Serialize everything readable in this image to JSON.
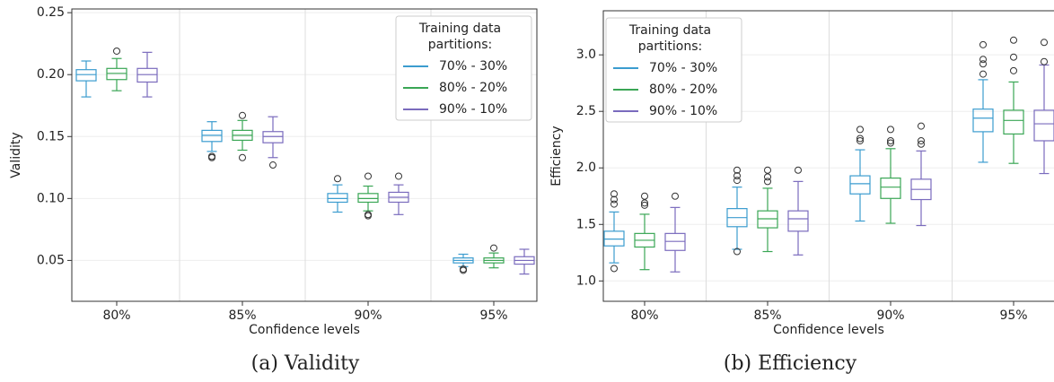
{
  "chart_data": [
    {
      "type": "box",
      "caption": "(a) Validity",
      "xlabel": "Confidence levels",
      "ylabel": "Validity",
      "categories": [
        "80%",
        "85%",
        "90%",
        "95%"
      ],
      "ylim": [
        0.017,
        0.253
      ],
      "yticks": [
        {
          "value": 0.05,
          "label": "0.05"
        },
        {
          "value": 0.1,
          "label": "0.10"
        },
        {
          "value": 0.15,
          "label": "0.15"
        },
        {
          "value": 0.2,
          "label": "0.20"
        },
        {
          "value": 0.25,
          "label": "0.25"
        }
      ],
      "grid": true,
      "legend_loc": "upper right",
      "legend_title": [
        "Training data",
        "partitions:"
      ],
      "series": [
        {
          "name": "70% - 30%",
          "color": "#3b9ccf",
          "boxes": [
            {
              "whislo": 0.182,
              "q1": 0.195,
              "med": 0.2,
              "q3": 0.204,
              "whishi": 0.211,
              "fliers": []
            },
            {
              "whislo": 0.138,
              "q1": 0.146,
              "med": 0.151,
              "q3": 0.155,
              "whishi": 0.162,
              "fliers": [
                0.133,
                0.134
              ]
            },
            {
              "whislo": 0.089,
              "q1": 0.097,
              "med": 0.1,
              "q3": 0.104,
              "whishi": 0.111,
              "fliers": [
                0.116
              ]
            },
            {
              "whislo": 0.045,
              "q1": 0.048,
              "med": 0.05,
              "q3": 0.052,
              "whishi": 0.055,
              "fliers": [
                0.042,
                0.043
              ]
            }
          ]
        },
        {
          "name": "80% - 20%",
          "color": "#3aa655",
          "boxes": [
            {
              "whislo": 0.187,
              "q1": 0.196,
              "med": 0.201,
              "q3": 0.205,
              "whishi": 0.213,
              "fliers": [
                0.219
              ]
            },
            {
              "whislo": 0.139,
              "q1": 0.147,
              "med": 0.151,
              "q3": 0.155,
              "whishi": 0.163,
              "fliers": [
                0.133,
                0.167
              ]
            },
            {
              "whislo": 0.09,
              "q1": 0.097,
              "med": 0.1,
              "q3": 0.104,
              "whishi": 0.11,
              "fliers": [
                0.086,
                0.087,
                0.118
              ]
            },
            {
              "whislo": 0.044,
              "q1": 0.048,
              "med": 0.05,
              "q3": 0.052,
              "whishi": 0.056,
              "fliers": [
                0.06
              ]
            }
          ]
        },
        {
          "name": "90% - 10%",
          "color": "#7a6bbd",
          "boxes": [
            {
              "whislo": 0.182,
              "q1": 0.194,
              "med": 0.2,
              "q3": 0.205,
              "whishi": 0.218,
              "fliers": []
            },
            {
              "whislo": 0.133,
              "q1": 0.145,
              "med": 0.15,
              "q3": 0.154,
              "whishi": 0.166,
              "fliers": [
                0.127
              ]
            },
            {
              "whislo": 0.087,
              "q1": 0.097,
              "med": 0.101,
              "q3": 0.105,
              "whishi": 0.111,
              "fliers": [
                0.118
              ]
            },
            {
              "whislo": 0.039,
              "q1": 0.047,
              "med": 0.05,
              "q3": 0.053,
              "whishi": 0.059,
              "fliers": []
            }
          ]
        }
      ]
    },
    {
      "type": "box",
      "caption": "(b) Efficiency",
      "xlabel": "Confidence levels",
      "ylabel": "Efficiency",
      "categories": [
        "80%",
        "85%",
        "90%",
        "95%"
      ],
      "ylim": [
        0.82,
        3.39
      ],
      "yticks": [
        {
          "value": 1,
          "label": "1.0"
        },
        1.5,
        {
          "value": 2,
          "label": "2.0"
        },
        2.5,
        {
          "value": 3,
          "label": "3.0"
        }
      ],
      "grid": true,
      "legend_loc": "upper left",
      "legend_title": [
        "Training data",
        "partitions:"
      ],
      "series": [
        {
          "name": "70% - 30%",
          "color": "#3b9ccf",
          "boxes": [
            {
              "whislo": 1.16,
              "q1": 1.31,
              "med": 1.37,
              "q3": 1.44,
              "whishi": 1.61,
              "fliers": [
                1.11,
                1.68,
                1.72,
                1.77
              ]
            },
            {
              "whislo": 1.28,
              "q1": 1.48,
              "med": 1.56,
              "q3": 1.64,
              "whishi": 1.83,
              "fliers": [
                1.26,
                1.89,
                1.93,
                1.98
              ]
            },
            {
              "whislo": 1.53,
              "q1": 1.77,
              "med": 1.86,
              "q3": 1.93,
              "whishi": 2.16,
              "fliers": [
                2.24,
                2.26,
                2.34
              ]
            },
            {
              "whislo": 2.05,
              "q1": 2.32,
              "med": 2.44,
              "q3": 2.52,
              "whishi": 2.78,
              "fliers": [
                2.83,
                2.92,
                2.96,
                3.09
              ]
            }
          ]
        },
        {
          "name": "80% - 20%",
          "color": "#3aa655",
          "boxes": [
            {
              "whislo": 1.1,
              "q1": 1.3,
              "med": 1.36,
              "q3": 1.42,
              "whishi": 1.59,
              "fliers": [
                1.67,
                1.69,
                1.75
              ]
            },
            {
              "whislo": 1.26,
              "q1": 1.47,
              "med": 1.55,
              "q3": 1.62,
              "whishi": 1.82,
              "fliers": [
                1.88,
                1.92,
                1.98
              ]
            },
            {
              "whislo": 1.51,
              "q1": 1.73,
              "med": 1.83,
              "q3": 1.91,
              "whishi": 2.17,
              "fliers": [
                2.22,
                2.24,
                2.34
              ]
            },
            {
              "whislo": 2.04,
              "q1": 2.3,
              "med": 2.42,
              "q3": 2.51,
              "whishi": 2.76,
              "fliers": [
                2.86,
                2.98,
                3.13
              ]
            }
          ]
        },
        {
          "name": "90% - 10%",
          "color": "#7a6bbd",
          "boxes": [
            {
              "whislo": 1.08,
              "q1": 1.27,
              "med": 1.35,
              "q3": 1.42,
              "whishi": 1.65,
              "fliers": [
                1.75
              ]
            },
            {
              "whislo": 1.23,
              "q1": 1.44,
              "med": 1.55,
              "q3": 1.62,
              "whishi": 1.88,
              "fliers": [
                1.98
              ]
            },
            {
              "whislo": 1.49,
              "q1": 1.72,
              "med": 1.81,
              "q3": 1.9,
              "whishi": 2.15,
              "fliers": [
                2.21,
                2.24,
                2.37
              ]
            },
            {
              "whislo": 1.95,
              "q1": 2.24,
              "med": 2.39,
              "q3": 2.51,
              "whishi": 2.91,
              "fliers": [
                2.94,
                3.11
              ]
            }
          ]
        }
      ]
    }
  ]
}
